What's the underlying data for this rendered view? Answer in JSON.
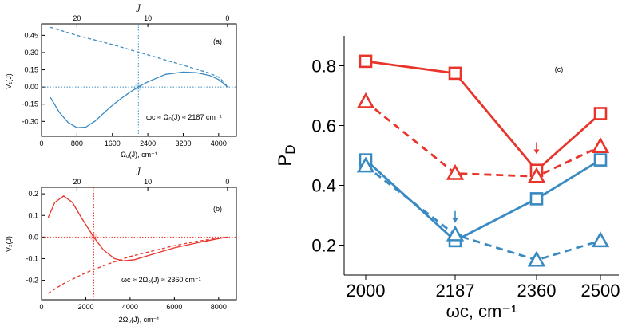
{
  "colors": {
    "blue": "#3a8ac2",
    "red": "#e8342a"
  },
  "chart_data": [
    {
      "id": "a",
      "type": "line",
      "panel_label": "(a)",
      "xlabel": "Ω₀(J), cm⁻¹",
      "ylabel": "V₁(J)",
      "top_axis_label": "J",
      "xlim": [
        0,
        4400
      ],
      "ylim": [
        -0.43,
        0.55
      ],
      "xticks": [
        0,
        800,
        1600,
        2400,
        3200,
        4000
      ],
      "yticks": [
        -0.3,
        -0.15,
        0.0,
        0.15,
        0.3,
        0.45
      ],
      "ytick_labels": [
        "-0.30",
        "-0.15",
        "0.00",
        "0.15",
        "0.30",
        "0.45"
      ],
      "top_ticks": [
        {
          "J": 20,
          "x": 800
        },
        {
          "J": 10,
          "x": 2400
        },
        {
          "J": 0,
          "x": 4200
        }
      ],
      "crossing": {
        "x": 2187,
        "y": 0
      },
      "annotation": "ωᴄ ≈ Ω₀(J) ≈ 2187 cm⁻¹",
      "series": [
        {
          "name": "solid",
          "style": "solid",
          "x": [
            200,
            400,
            600,
            800,
            1000,
            1200,
            1400,
            1600,
            1800,
            2000,
            2187,
            2400,
            2800,
            3200,
            3500,
            3800,
            4000,
            4100,
            4200
          ],
          "y": [
            -0.09,
            -0.22,
            -0.31,
            -0.355,
            -0.35,
            -0.3,
            -0.23,
            -0.16,
            -0.1,
            -0.045,
            0.0,
            0.045,
            0.11,
            0.13,
            0.125,
            0.1,
            0.065,
            0.035,
            0.0
          ]
        },
        {
          "name": "dashed",
          "style": "dashed",
          "x": [
            200,
            800,
            1600,
            2400,
            3200,
            3800,
            4000,
            4100,
            4200
          ],
          "y": [
            0.52,
            0.45,
            0.37,
            0.28,
            0.19,
            0.12,
            0.085,
            0.05,
            0.0
          ]
        }
      ]
    },
    {
      "id": "b",
      "type": "line",
      "panel_label": "(b)",
      "xlabel": "2Ω₀(J), cm⁻¹",
      "ylabel": "V₂(J)",
      "top_axis_label": "J",
      "xlim": [
        0,
        8800
      ],
      "ylim": [
        -0.29,
        0.23
      ],
      "xticks": [
        0,
        2000,
        4000,
        6000,
        8000
      ],
      "yticks": [
        -0.2,
        -0.1,
        0.0,
        0.1,
        0.2
      ],
      "ytick_labels": [
        "-0.2",
        "-0.1",
        "0.0",
        "0.1",
        "0.2"
      ],
      "top_ticks": [
        {
          "J": 20,
          "x": 1600
        },
        {
          "J": 10,
          "x": 4800
        },
        {
          "J": 0,
          "x": 8400
        }
      ],
      "crossing": {
        "x": 2360,
        "y": 0
      },
      "annotation": "ωᴄ ≈ 2Ω₀(J) ≈ 2360 cm⁻¹",
      "series": [
        {
          "name": "solid",
          "style": "solid",
          "x": [
            300,
            600,
            1000,
            1400,
            1800,
            2360,
            2800,
            3300,
            3700,
            4200,
            5000,
            6000,
            7000,
            8000,
            8400
          ],
          "y": [
            0.09,
            0.16,
            0.19,
            0.16,
            0.09,
            0.0,
            -0.06,
            -0.1,
            -0.11,
            -0.105,
            -0.08,
            -0.05,
            -0.027,
            -0.007,
            0.0
          ]
        },
        {
          "name": "dashed",
          "style": "dashed",
          "x": [
            300,
            1000,
            2000,
            3000,
            4000,
            5000,
            6000,
            7000,
            8000,
            8400
          ],
          "y": [
            -0.26,
            -0.215,
            -0.165,
            -0.125,
            -0.09,
            -0.065,
            -0.04,
            -0.02,
            -0.005,
            0.0
          ]
        }
      ]
    },
    {
      "id": "c",
      "type": "line",
      "panel_label": "(c)",
      "xlabel": "ωᴄ, cm⁻¹",
      "ylabel": "P_D",
      "ylim": [
        0.1,
        0.9
      ],
      "yticks": [
        0.2,
        0.4,
        0.6,
        0.8
      ],
      "ytick_labels": [
        "0.2",
        "0.4",
        "0.6",
        "0.8"
      ],
      "categories": [
        "2000",
        "2187",
        "2360",
        "2500"
      ],
      "arrows": [
        {
          "color": "blue",
          "category": "2187",
          "y": 0.21
        },
        {
          "color": "red",
          "category": "2360",
          "y": 0.44
        }
      ],
      "series": [
        {
          "name": "red squares",
          "color": "red",
          "marker": "square",
          "style": "solid",
          "values": [
            0.815,
            0.775,
            0.45,
            0.64
          ]
        },
        {
          "name": "red triangles",
          "color": "red",
          "marker": "triangle",
          "style": "dashed",
          "values": [
            0.68,
            0.44,
            0.43,
            0.53
          ]
        },
        {
          "name": "blue squares",
          "color": "blue",
          "marker": "square",
          "style": "solid",
          "values": [
            0.485,
            0.215,
            0.355,
            0.485
          ]
        },
        {
          "name": "blue triangles",
          "color": "blue",
          "marker": "triangle",
          "style": "dashed",
          "values": [
            0.465,
            0.235,
            0.15,
            0.215
          ]
        }
      ]
    }
  ]
}
